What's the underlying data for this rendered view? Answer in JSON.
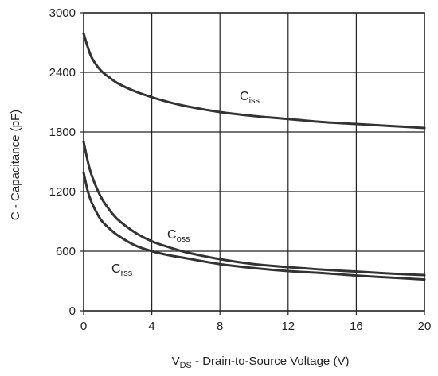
{
  "chart_data": {
    "type": "line",
    "xlabel": {
      "main": "V",
      "sub": "DS",
      "rest": " - Drain-to-Source Voltage (V)"
    },
    "ylabel": "C - Capacitance (pF)",
    "xlim": [
      0,
      20
    ],
    "ylim": [
      0,
      3000
    ],
    "x_ticks": [
      "0",
      "4",
      "8",
      "12",
      "16",
      "20"
    ],
    "y_ticks": [
      "0",
      "600",
      "1200",
      "1800",
      "2400",
      "3000"
    ],
    "grid": true,
    "series": [
      {
        "name": "Ciss",
        "label_main": "C",
        "label_sub": "iss",
        "color": "#333333",
        "x": [
          0,
          0.25,
          0.5,
          1,
          1.5,
          2,
          3,
          4,
          5,
          6,
          8,
          10,
          12,
          14,
          16,
          18,
          20
        ],
        "y": [
          2790,
          2650,
          2540,
          2420,
          2350,
          2290,
          2210,
          2150,
          2100,
          2060,
          2000,
          1960,
          1930,
          1900,
          1880,
          1860,
          1840
        ]
      },
      {
        "name": "Coss",
        "label_main": "C",
        "label_sub": "oss",
        "color": "#333333",
        "x": [
          0,
          0.25,
          0.5,
          1,
          1.5,
          2,
          3,
          4,
          5,
          6,
          8,
          10,
          12,
          14,
          16,
          18,
          20
        ],
        "y": [
          1700,
          1500,
          1350,
          1150,
          1020,
          920,
          790,
          700,
          640,
          590,
          520,
          470,
          440,
          415,
          395,
          375,
          360
        ]
      },
      {
        "name": "Crss",
        "label_main": "C",
        "label_sub": "rss",
        "color": "#333333",
        "x": [
          0,
          0.25,
          0.5,
          1,
          1.5,
          2,
          3,
          4,
          5,
          6,
          8,
          10,
          12,
          14,
          16,
          18,
          20
        ],
        "y": [
          1390,
          1200,
          1080,
          920,
          830,
          760,
          660,
          600,
          560,
          530,
          470,
          430,
          400,
          380,
          355,
          335,
          315
        ]
      }
    ]
  }
}
